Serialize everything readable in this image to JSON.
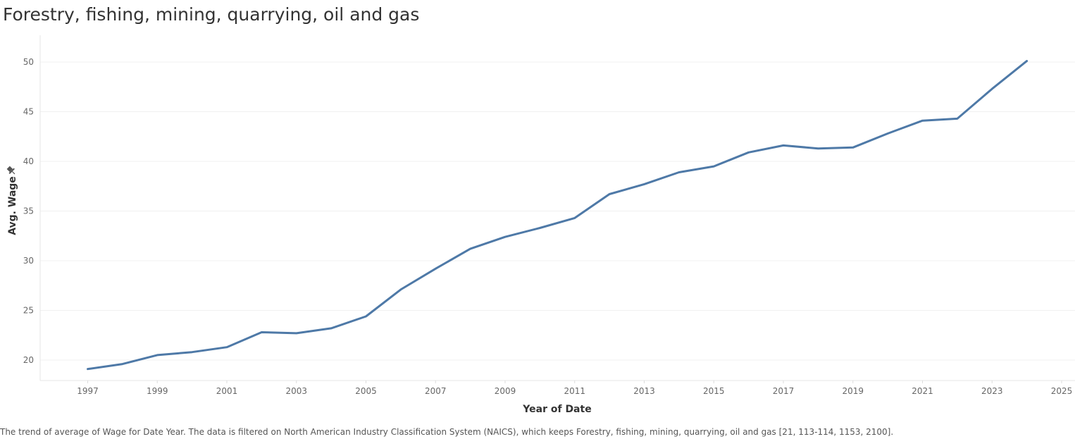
{
  "title": "Forestry, fishing, mining, quarrying, oil and gas",
  "caption": "The trend of average of Wage for Date Year. The data is filtered on North American Industry Classification System (NAICS), which keeps Forestry, fishing, mining, quarrying, oil and gas [21, 113-114, 1153, 2100].",
  "colors": {
    "line": "#4e79a7",
    "grid": "#f0f0f0",
    "axis": "#e0e0e0",
    "tick_text": "#666666"
  },
  "pin_icon": "pin-icon",
  "chart_data": {
    "type": "line",
    "title": "Forestry, fishing, mining, quarrying, oil and gas",
    "xlabel": "Year of Date",
    "ylabel": "Avg. Wage",
    "x": [
      1997,
      1998,
      1999,
      2000,
      2001,
      2002,
      2003,
      2004,
      2005,
      2006,
      2007,
      2008,
      2009,
      2010,
      2011,
      2012,
      2013,
      2014,
      2015,
      2016,
      2017,
      2018,
      2019,
      2020,
      2021,
      2022,
      2023,
      2024
    ],
    "series": [
      {
        "values": [
          19.1,
          19.6,
          20.5,
          20.8,
          21.3,
          22.8,
          22.7,
          23.2,
          24.4,
          27.1,
          29.2,
          31.2,
          32.4,
          33.3,
          34.3,
          36.7,
          37.7,
          38.9,
          39.5,
          40.9,
          41.6,
          41.3,
          41.4,
          42.8,
          44.1,
          44.3,
          47.3,
          50.1
        ]
      }
    ],
    "xticks": [
      "1997",
      "1999",
      "2001",
      "2003",
      "2005",
      "2007",
      "2009",
      "2011",
      "2013",
      "2015",
      "2017",
      "2019",
      "2021",
      "2023",
      "2025"
    ],
    "yticks": [
      "20",
      "25",
      "30",
      "35",
      "40",
      "45",
      "50"
    ],
    "xlim": [
      1997,
      2025
    ],
    "ylim": [
      18,
      52.5
    ],
    "grid": true,
    "legend": "none"
  }
}
